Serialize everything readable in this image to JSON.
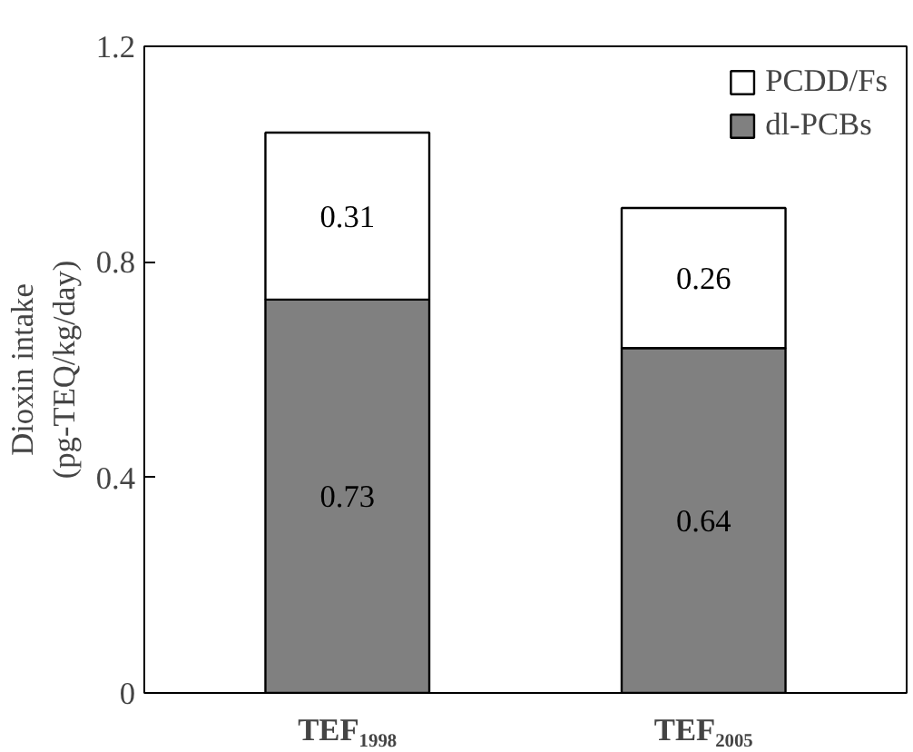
{
  "chart_data": {
    "type": "bar",
    "stacked": true,
    "categories": [
      "TEF₁₉₉₈",
      "TEF₂₀₀₅"
    ],
    "ylabel": "Dioxin intake\n(pg-TEQ/kg/day)",
    "series": [
      {
        "name": "dl-PCBs",
        "color": "#808080",
        "values": [
          0.73,
          0.64
        ]
      },
      {
        "name": "PCDD/Fs",
        "color": "#ffffff",
        "values": [
          0.31,
          0.26
        ]
      }
    ],
    "ylim": [
      0,
      1.2
    ],
    "yticks": [
      0,
      0.4,
      0.8,
      1.2
    ],
    "data_labels": true,
    "legend": "top right",
    "grid": false
  }
}
